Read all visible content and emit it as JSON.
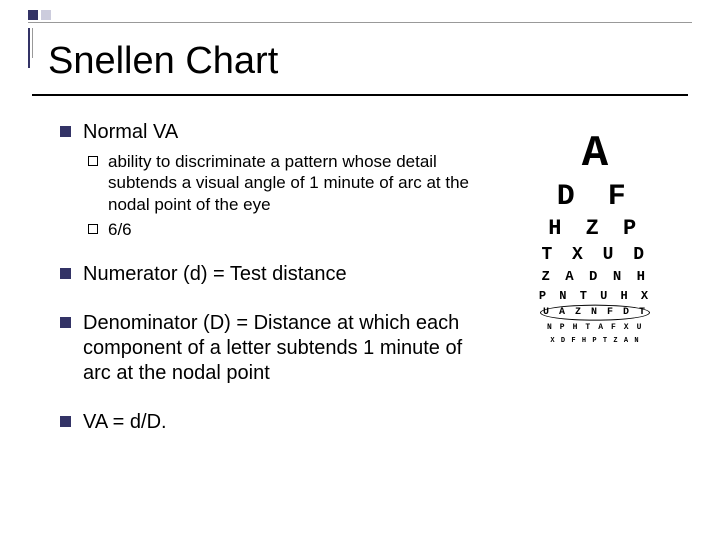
{
  "title": "Snellen Chart",
  "colors": {
    "bullet": "#333366",
    "text": "#000000",
    "bg": "#ffffff"
  },
  "bullets": [
    {
      "text": "Normal VA",
      "subs": [
        {
          "text": "ability to discriminate a pattern whose detail subtends a visual angle of 1 minute of arc at the nodal point of the eye"
        },
        {
          "text": "6/6"
        }
      ]
    },
    {
      "text": "Numerator (d) = Test distance",
      "subs": []
    },
    {
      "text": "Denominator (D) = Distance at which each component of a letter subtends 1 minute of arc at the nodal point",
      "subs": []
    },
    {
      "text": "VA = d/D.",
      "subs": []
    }
  ],
  "snellen_chart": {
    "rows": [
      {
        "letters": "A",
        "size": 44
      },
      {
        "letters": "D F",
        "size": 30
      },
      {
        "letters": "H Z P",
        "size": 22
      },
      {
        "letters": "T X U D",
        "size": 18
      },
      {
        "letters": "Z A D N H",
        "size": 14
      },
      {
        "letters": "P N T U H X",
        "size": 12
      },
      {
        "letters": "U A Z N F D T",
        "size": 10,
        "circled": true
      },
      {
        "letters": "N P H T A F X U",
        "size": 8
      },
      {
        "letters": "X D F H P T Z A N",
        "size": 7
      }
    ]
  }
}
